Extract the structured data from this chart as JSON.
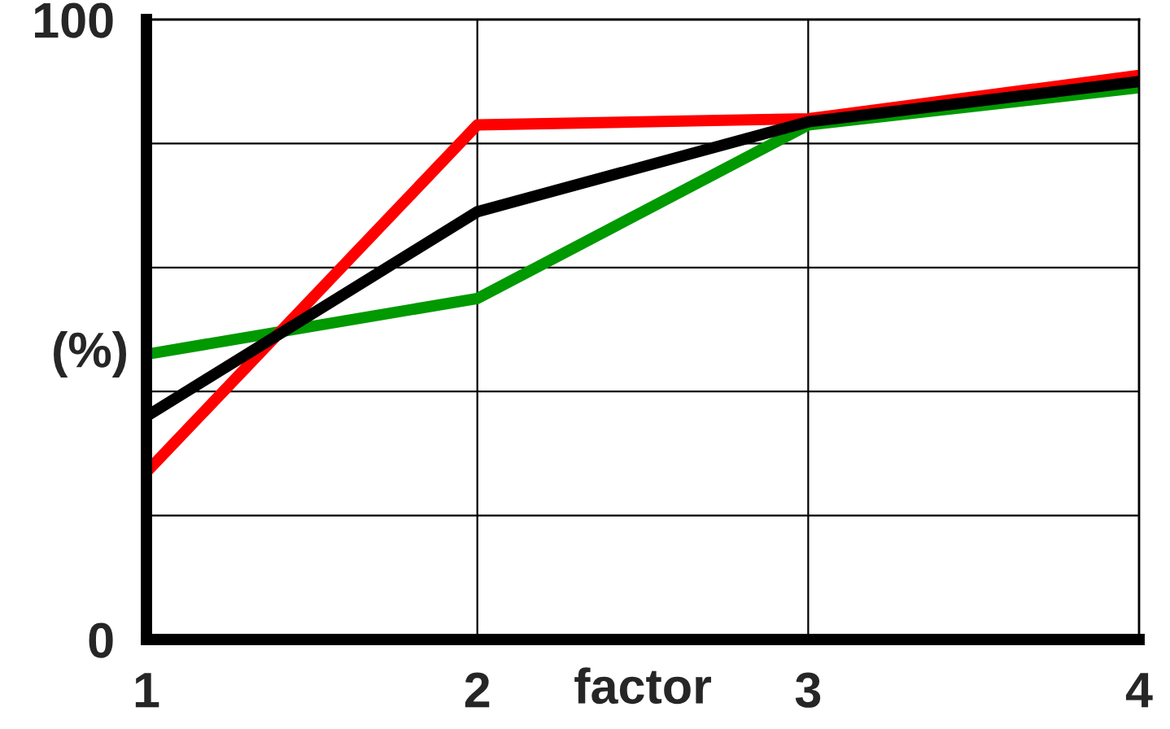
{
  "chart_data": {
    "type": "line",
    "xlabel": "factor",
    "ylabel": "(%)",
    "x": [
      1,
      2,
      3,
      4
    ],
    "series": [
      {
        "color": "#009900",
        "values": [
          46,
          55,
          83,
          89
        ]
      },
      {
        "color": "#ff0000",
        "values": [
          27,
          83,
          84,
          91
        ]
      },
      {
        "color": "#000000",
        "values": [
          36,
          69,
          83.5,
          90
        ]
      }
    ],
    "xlim": [
      1,
      4
    ],
    "ylim": [
      0,
      100
    ],
    "xticks": [
      1,
      2,
      3,
      4
    ],
    "yticks": [
      0,
      {
        "value": 20,
        "label": null
      },
      {
        "value": 40,
        "label": null
      },
      {
        "value": 60,
        "label": null
      },
      {
        "value": 80,
        "label": null
      },
      100
    ],
    "grid": true,
    "marker": "none",
    "line_style": "solid"
  }
}
